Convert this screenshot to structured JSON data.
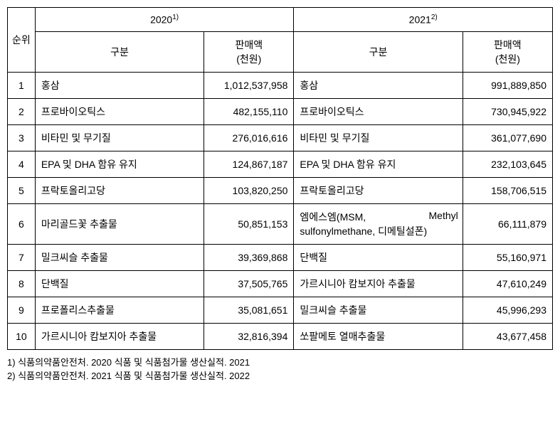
{
  "headers": {
    "rank": "순위",
    "year2020": "2020",
    "year2020_sup": "1)",
    "year2021": "2021",
    "year2021_sup": "2)",
    "category": "구분",
    "sales": "판매액\n(천원)"
  },
  "rows": [
    {
      "rank": "1",
      "cat2020": "홍삼",
      "sales2020": "1,012,537,958",
      "cat2021": "홍삼",
      "sales2021": "991,889,850"
    },
    {
      "rank": "2",
      "cat2020": "프로바이오틱스",
      "sales2020": "482,155,110",
      "cat2021": "프로바이오틱스",
      "sales2021": "730,945,922"
    },
    {
      "rank": "3",
      "cat2020": "비타민 및 무기질",
      "sales2020": "276,016,616",
      "cat2021": "비타민 및 무기질",
      "sales2021": "361,077,690"
    },
    {
      "rank": "4",
      "cat2020": "EPA 및 DHA 함유 유지",
      "sales2020": "124,867,187",
      "cat2021": "EPA 및 DHA 함유 유지",
      "sales2021": "232,103,645"
    },
    {
      "rank": "5",
      "cat2020": "프락토올리고당",
      "sales2020": "103,820,250",
      "cat2021": "프락토올리고당",
      "sales2021": "158,706,515"
    },
    {
      "rank": "6",
      "cat2020": "마리골드꽃 추출물",
      "sales2020": "50,851,153",
      "cat2021_l1": "엠에스엠(MSM,",
      "cat2021_l1b": "Methyl",
      "cat2021_l2": "sulfonylmethane, 디메틸설폰)",
      "sales2021": "66,111,879"
    },
    {
      "rank": "7",
      "cat2020": "밀크씨슬 추출물",
      "sales2020": "39,369,868",
      "cat2021": "단백질",
      "sales2021": "55,160,971"
    },
    {
      "rank": "8",
      "cat2020": "단백질",
      "sales2020": "37,505,765",
      "cat2021": "가르시니아 캄보지아 추출물",
      "sales2021": "47,610,249"
    },
    {
      "rank": "9",
      "cat2020": "프로폴리스추출물",
      "sales2020": "35,081,651",
      "cat2021": "밀크씨슬 추출물",
      "sales2021": "45,996,293"
    },
    {
      "rank": "10",
      "cat2020": "가르시니아 캄보지아 추출물",
      "sales2020": "32,816,394",
      "cat2021": "쏘팔메토 열매추출물",
      "sales2021": "43,677,458"
    }
  ],
  "footnotes": {
    "f1": "1) 식품의약품안전처. 2020 식품 및 식품첨가물 생산실적. 2021",
    "f2": "2) 식품의약품안전처. 2021 식품 및 식품첨가물 생산실적. 2022"
  }
}
